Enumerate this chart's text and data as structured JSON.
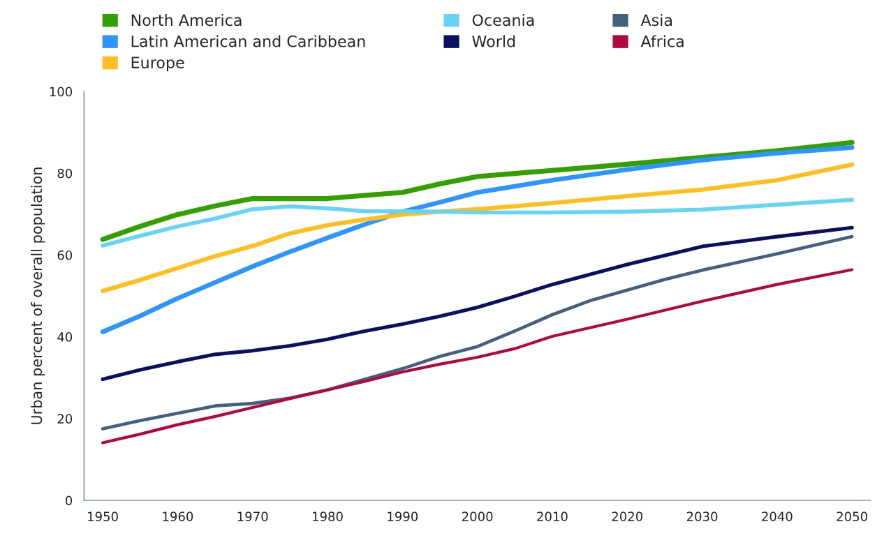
{
  "chart_data": {
    "type": "line",
    "ylabel": "Urban percent of overall population",
    "xlim": [
      1947.5,
      2052.5
    ],
    "xticks": [
      1950,
      1960,
      1970,
      1980,
      1990,
      2000,
      2010,
      2020,
      2030,
      2040,
      2050
    ],
    "ylim": [
      0,
      100
    ],
    "yticks": [
      0,
      20,
      40,
      60,
      80,
      100
    ],
    "grid": false,
    "legend": "top",
    "marker": "none",
    "line_style": "solid",
    "series": [
      {
        "name": "North America",
        "color": "#33a000",
        "x": [
          1950,
          1955,
          1960,
          1965,
          1970,
          1975,
          1980,
          1985,
          1990,
          1995,
          2000,
          2010,
          2020,
          2030,
          2040,
          2050
        ],
        "values": [
          63.8,
          67.0,
          69.9,
          72.0,
          73.8,
          73.8,
          73.8,
          74.6,
          75.3,
          77.4,
          79.2,
          80.7,
          82.2,
          83.9,
          85.5,
          87.5
        ]
      },
      {
        "name": "Latin American and Caribbean",
        "color": "#2e95ff",
        "x": [
          1950,
          1955,
          1960,
          1965,
          1970,
          1975,
          1980,
          1985,
          1990,
          1995,
          2000,
          2010,
          2020,
          2030,
          2040,
          2050
        ],
        "values": [
          41.2,
          45.1,
          49.4,
          53.3,
          57.2,
          60.8,
          64.2,
          67.5,
          70.6,
          72.9,
          75.3,
          78.3,
          80.9,
          83.2,
          84.9,
          86.3
        ]
      },
      {
        "name": "Europe",
        "color": "#ffbf20",
        "x": [
          1950,
          1955,
          1960,
          1965,
          1970,
          1975,
          1980,
          1985,
          1990,
          1995,
          2000,
          2010,
          2020,
          2030,
          2040,
          2050
        ],
        "values": [
          51.2,
          53.9,
          56.8,
          59.7,
          62.2,
          65.3,
          67.3,
          68.7,
          69.9,
          70.6,
          71.2,
          72.7,
          74.4,
          76.0,
          78.3,
          82.1
        ]
      },
      {
        "name": "Oceania",
        "color": "#66d4f2",
        "x": [
          1950,
          1955,
          1960,
          1965,
          1970,
          1975,
          1980,
          1985,
          1990,
          1995,
          2000,
          2010,
          2020,
          2030,
          2040,
          2050
        ],
        "values": [
          62.3,
          64.7,
          67.0,
          68.9,
          71.2,
          71.9,
          71.4,
          70.7,
          70.7,
          70.6,
          70.4,
          70.4,
          70.6,
          71.1,
          72.3,
          73.5
        ]
      },
      {
        "name": "World",
        "color": "#0a0f60",
        "x": [
          1950,
          1955,
          1960,
          1965,
          1970,
          1975,
          1980,
          1985,
          1990,
          1995,
          2000,
          2005,
          2010,
          2020,
          2030,
          2040,
          2050
        ],
        "values": [
          29.6,
          31.9,
          33.9,
          35.7,
          36.6,
          37.8,
          39.4,
          41.4,
          43.1,
          45.0,
          47.2,
          49.9,
          52.8,
          57.7,
          62.1,
          64.5,
          66.7
        ]
      },
      {
        "name": "Asia",
        "color": "#45607f",
        "x": [
          1950,
          1955,
          1960,
          1965,
          1970,
          1975,
          1980,
          1985,
          1990,
          1995,
          2000,
          2005,
          2010,
          2015,
          2020,
          2025,
          2030,
          2040,
          2050
        ],
        "values": [
          17.5,
          19.5,
          21.3,
          23.1,
          23.7,
          25.0,
          27.0,
          29.6,
          32.2,
          35.2,
          37.6,
          41.4,
          45.4,
          48.8,
          51.4,
          54.0,
          56.3,
          60.3,
          64.5
        ]
      },
      {
        "name": "Africa",
        "color": "#b0083f",
        "x": [
          1950,
          1955,
          1960,
          1965,
          1970,
          1975,
          1980,
          1985,
          1990,
          1995,
          2000,
          2005,
          2010,
          2020,
          2030,
          2040,
          2050
        ],
        "values": [
          14.1,
          16.2,
          18.5,
          20.5,
          22.7,
          24.9,
          27.0,
          29.1,
          31.4,
          33.3,
          35.0,
          37.1,
          40.1,
          44.3,
          48.7,
          52.8,
          56.4
        ]
      }
    ]
  }
}
